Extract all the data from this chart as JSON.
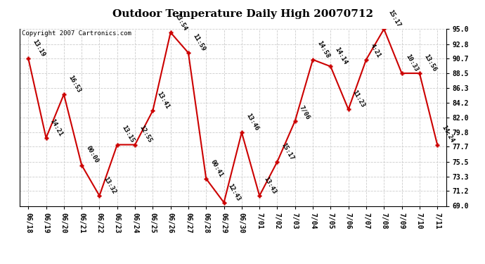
{
  "title": "Outdoor Temperature Daily High 20070712",
  "copyright_text": "Copyright 2007 Cartronics.com",
  "x_labels": [
    "06/18",
    "06/19",
    "06/20",
    "06/21",
    "06/22",
    "06/23",
    "06/24",
    "06/25",
    "06/26",
    "06/27",
    "06/28",
    "06/29",
    "06/30",
    "7/01",
    "7/02",
    "7/03",
    "7/04",
    "7/05",
    "7/06",
    "7/07",
    "7/08",
    "7/09",
    "7/10",
    "7/11"
  ],
  "y_values": [
    90.7,
    79.0,
    85.4,
    75.0,
    70.5,
    78.0,
    78.0,
    83.0,
    94.5,
    91.5,
    73.0,
    69.5,
    79.8,
    70.5,
    75.5,
    81.5,
    90.5,
    89.5,
    83.2,
    90.5,
    95.0,
    88.5,
    88.5,
    78.0
  ],
  "point_labels": [
    "13:19",
    "14:21",
    "16:53",
    "00:00",
    "13:32",
    "13:15",
    "12:55",
    "13:41",
    "13:54",
    "11:59",
    "00:41",
    "12:43",
    "13:46",
    "13:43",
    "15:17",
    "7/06",
    "14:58",
    "14:14",
    "11:23",
    "4:21",
    "15:17",
    "10:33",
    "13:56",
    "14:24"
  ],
  "ylim": [
    69.0,
    95.0
  ],
  "y_ticks": [
    69.0,
    71.2,
    73.3,
    75.5,
    77.7,
    79.8,
    82.0,
    84.2,
    86.3,
    88.5,
    90.7,
    92.8,
    95.0
  ],
  "line_color": "#cc0000",
  "marker_color": "#cc0000",
  "bg_color": "#ffffff",
  "grid_color": "#cccccc",
  "title_fontsize": 11,
  "tick_fontsize": 7,
  "annot_fontsize": 6.5
}
